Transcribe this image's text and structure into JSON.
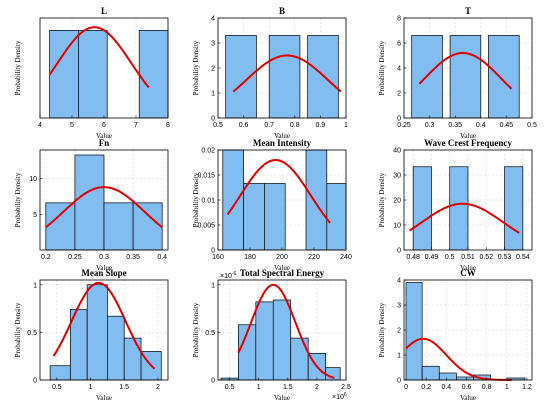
{
  "chart_data": [
    {
      "type": "bar",
      "title": "L",
      "xlabel": "Value",
      "ylabel": "Probability Density",
      "xlim": [
        4,
        8
      ],
      "ylim": [
        0,
        0.38
      ],
      "ytick_labels": [],
      "grid": true,
      "xticks": [
        4,
        5,
        6,
        7,
        8
      ],
      "xtick_labels": [
        "4",
        "5",
        "6",
        "7",
        "8"
      ],
      "bins": [
        [
          4.3,
          5.2
        ],
        [
          5.2,
          6.1
        ],
        [
          7.1,
          8.0
        ]
      ],
      "values": [
        0.333,
        0.333,
        0.333
      ],
      "fit": {
        "mean": 5.7,
        "sd": 1.15,
        "peak": 0.345,
        "range": [
          4.3,
          7.4
        ]
      }
    },
    {
      "type": "bar",
      "title": "B",
      "xlabel": "Value",
      "ylabel": "Probability Density",
      "xlim": [
        0.5,
        1
      ],
      "ylim": [
        0,
        4
      ],
      "grid": true,
      "xticks": [
        0.5,
        0.6,
        0.7,
        0.8,
        0.9,
        1
      ],
      "xtick_labels": [
        "0.5",
        "0.6",
        "0.7",
        "0.8",
        "0.9",
        "1"
      ],
      "yticks": [
        0,
        1,
        2,
        3,
        4
      ],
      "ytick_labels": [
        "0",
        "1",
        "2",
        "3",
        "4"
      ],
      "bins": [
        [
          0.53,
          0.65
        ],
        [
          0.7,
          0.82
        ],
        [
          0.85,
          0.97
        ]
      ],
      "values": [
        3.3,
        3.3,
        3.3
      ],
      "fit": {
        "mean": 0.77,
        "sd": 0.16,
        "peak": 2.5,
        "range": [
          0.56,
          0.98
        ]
      }
    },
    {
      "type": "bar",
      "title": "T",
      "xlabel": "Value",
      "ylabel": "Probability Density",
      "xlim": [
        0.25,
        0.5
      ],
      "ylim": [
        0,
        8
      ],
      "grid": true,
      "xticks": [
        0.25,
        0.3,
        0.35,
        0.4,
        0.45,
        0.5
      ],
      "xtick_labels": [
        "0.25",
        "0.3",
        "0.35",
        "0.4",
        "0.45",
        "0.5"
      ],
      "yticks": [
        0,
        2,
        4,
        6,
        8
      ],
      "ytick_labels": [
        "0",
        "2",
        "4",
        "6",
        "8"
      ],
      "bins": [
        [
          0.265,
          0.325
        ],
        [
          0.34,
          0.4
        ],
        [
          0.415,
          0.475
        ]
      ],
      "values": [
        6.6,
        6.6,
        6.6
      ],
      "fit": {
        "mean": 0.365,
        "sd": 0.075,
        "peak": 5.2,
        "range": [
          0.28,
          0.46
        ]
      }
    },
    {
      "type": "bar",
      "title": "Fn",
      "xlabel": "Value",
      "ylabel": "Probability Density",
      "xlim": [
        0.19,
        0.41
      ],
      "ylim": [
        0,
        14
      ],
      "grid": true,
      "xticks": [
        0.2,
        0.25,
        0.3,
        0.35,
        0.4
      ],
      "xtick_labels": [
        "0.2",
        "0.25",
        "0.3",
        "0.35",
        "0.4"
      ],
      "yticks": [
        5,
        10
      ],
      "ytick_labels": [
        "5",
        "10"
      ],
      "bins": [
        [
          0.2,
          0.25
        ],
        [
          0.25,
          0.3
        ],
        [
          0.3,
          0.35
        ],
        [
          0.35,
          0.4
        ]
      ],
      "values": [
        6.6,
        13.3,
        6.6,
        6.6
      ],
      "fit": {
        "mean": 0.3,
        "sd": 0.07,
        "peak": 8.8,
        "range": [
          0.2,
          0.4
        ]
      }
    },
    {
      "type": "bar",
      "title": "Mean Intensity",
      "xlabel": "Value",
      "ylabel": "Probability Density",
      "xlim": [
        160,
        240
      ],
      "ylim": [
        0,
        0.02
      ],
      "grid": true,
      "xticks": [
        160,
        180,
        200,
        220,
        240
      ],
      "xtick_labels": [
        "160",
        "180",
        "200",
        "220",
        "240"
      ],
      "yticks": [
        0,
        0.005,
        0.01,
        0.015,
        0.02
      ],
      "ytick_labels": [
        "0",
        "0.005",
        "0.01",
        "0.015",
        "0.02"
      ],
      "bins": [
        [
          163,
          176
        ],
        [
          176,
          189
        ],
        [
          189,
          202
        ],
        [
          215,
          228
        ],
        [
          228,
          240
        ]
      ],
      "values": [
        0.02,
        0.0133,
        0.0133,
        0.02,
        0.0133
      ],
      "fit": {
        "mean": 196,
        "sd": 22,
        "peak": 0.018,
        "range": [
          166,
          230
        ]
      }
    },
    {
      "type": "bar",
      "title": "Wave Crest Frequency",
      "xlabel": "Value",
      "ylabel": "Probability Density",
      "xlim": [
        0.475,
        0.545
      ],
      "ylim": [
        0,
        40
      ],
      "grid": true,
      "xticks": [
        0.48,
        0.49,
        0.5,
        0.51,
        0.52,
        0.53,
        0.54
      ],
      "xtick_labels": [
        "0.48",
        "0.49",
        "0.5",
        "0.51",
        "0.52",
        "0.53",
        "0.54"
      ],
      "yticks": [
        0,
        10,
        20,
        30,
        40
      ],
      "ytick_labels": [
        "0",
        "10",
        "20",
        "30",
        "40"
      ],
      "bins": [
        [
          0.48,
          0.49
        ],
        [
          0.5,
          0.51
        ],
        [
          0.53,
          0.54
        ]
      ],
      "values": [
        33.3,
        33.3,
        33.3
      ],
      "fit": {
        "mean": 0.507,
        "sd": 0.022,
        "peak": 18.5,
        "range": [
          0.478,
          0.538
        ]
      }
    },
    {
      "type": "bar",
      "title": "Mean Slope",
      "xlabel": "Value",
      "ylabel": "Probability Density",
      "xlim": [
        0.25,
        2.15
      ],
      "ylim": [
        0,
        1.05
      ],
      "grid": true,
      "xticks": [
        0.5,
        1,
        1.5,
        2
      ],
      "xtick_labels": [
        "0.5",
        "1",
        "1.5",
        "2"
      ],
      "yticks": [
        0,
        0.5,
        1
      ],
      "ytick_labels": [
        "0",
        "0.5",
        "1"
      ],
      "bins": [
        [
          0.4,
          0.7
        ],
        [
          0.7,
          0.95
        ],
        [
          0.95,
          1.25
        ],
        [
          1.25,
          1.5
        ],
        [
          1.5,
          1.75
        ],
        [
          1.75,
          2.05
        ]
      ],
      "values": [
        0.15,
        0.74,
        1.0,
        0.67,
        0.44,
        0.3
      ],
      "fit": {
        "mean": 1.12,
        "sd": 0.4,
        "peak": 1.02,
        "range": [
          0.45,
          1.95
        ]
      }
    },
    {
      "type": "bar",
      "title": "Total Spectral Energy",
      "xlabel": "Value",
      "ylabel": "Probability Density",
      "xlim": [
        0.3,
        2.5
      ],
      "ylim": [
        0,
        1.05
      ],
      "grid": true,
      "x_exponent": "×10",
      "x_exponent_power": "6",
      "y_exponent": "×10",
      "y_exponent_power": "-6",
      "xticks": [
        0.5,
        1,
        1.5,
        2,
        2.5
      ],
      "xtick_labels": [
        "0.5",
        "1",
        "1.5",
        "2",
        "2.5"
      ],
      "yticks": [
        0,
        0.5,
        1
      ],
      "ytick_labels": [
        "0",
        "0.5",
        "1"
      ],
      "bins": [
        [
          0.35,
          0.65
        ],
        [
          0.65,
          0.95
        ],
        [
          0.95,
          1.25
        ],
        [
          1.25,
          1.55
        ],
        [
          1.55,
          1.85
        ],
        [
          1.85,
          2.15
        ],
        [
          2.15,
          2.4
        ]
      ],
      "values": [
        0.02,
        0.58,
        0.82,
        0.84,
        0.44,
        0.28,
        0.13
      ],
      "fit": {
        "mean": 1.25,
        "sd": 0.38,
        "peak": 1.0,
        "range": [
          0.65,
          2.3
        ]
      }
    },
    {
      "type": "bar",
      "title": "CW",
      "xlabel": "Value",
      "ylabel": "Probability Density",
      "xlim": [
        -0.02,
        1.25
      ],
      "ylim": [
        0,
        4
      ],
      "grid": true,
      "xticks": [
        0,
        0.2,
        0.4,
        0.6,
        0.8,
        1,
        1.2
      ],
      "xtick_labels": [
        "0",
        "0.2",
        "0.4",
        "0.6",
        "0.8",
        "1",
        "1.2"
      ],
      "yticks": [
        0,
        1,
        2,
        3,
        4
      ],
      "ytick_labels": [
        "0",
        "1",
        "2",
        "3",
        "4"
      ],
      "bins": [
        [
          0,
          0.16
        ],
        [
          0.16,
          0.33
        ],
        [
          0.33,
          0.5
        ],
        [
          0.5,
          0.67
        ],
        [
          0.67,
          0.84
        ],
        [
          0.84,
          1.0
        ],
        [
          1.0,
          1.18
        ]
      ],
      "values": [
        3.9,
        0.55,
        0.28,
        0.12,
        0.2,
        0.0,
        0.08
      ],
      "fit": {
        "mean": 0.17,
        "sd": 0.23,
        "peak": 1.65,
        "range": [
          0.0,
          1.05
        ]
      }
    }
  ]
}
